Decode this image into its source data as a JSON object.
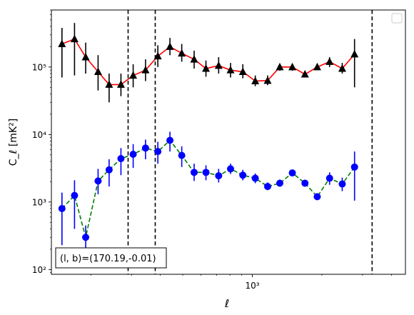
{
  "chart_data": {
    "type": "scatter",
    "title": "",
    "xlabel": "ℓ",
    "ylabel": "C_ℓ [mK²]",
    "xscale": "log",
    "yscale": "log",
    "xlim": [
      135,
      4600
    ],
    "ylim": [
      85,
      700000
    ],
    "xticks": [
      {
        "value": 1000,
        "label": "10³"
      }
    ],
    "yticks": [
      {
        "value": 100,
        "label": "10²"
      },
      {
        "value": 1000,
        "label": "10³"
      },
      {
        "value": 10000,
        "label": "10⁴"
      },
      {
        "value": 100000,
        "label": "10⁵"
      }
    ],
    "vlines": [
      290,
      380,
      3300
    ],
    "vline_style": "dashed",
    "vline_color": "#000000",
    "legend": {
      "placement": "upper right",
      "entries": []
    },
    "annotation": {
      "text": "(l, b)=(170.19,-0.01)",
      "placement": "lower left"
    },
    "series": [
      {
        "marker": "triangle",
        "marker_color": "#000000",
        "line_color": "#ff0000",
        "line_style": "solid",
        "errorbar_color": "#000000",
        "points": [
          {
            "x": 150,
            "y": 220000,
            "lo": 70000,
            "hi": 380000
          },
          {
            "x": 170,
            "y": 260000,
            "lo": 75000,
            "hi": 450000
          },
          {
            "x": 190,
            "y": 140000,
            "lo": 80000,
            "hi": 230000
          },
          {
            "x": 215,
            "y": 85000,
            "lo": 45000,
            "hi": 150000
          },
          {
            "x": 240,
            "y": 55000,
            "lo": 30000,
            "hi": 80000
          },
          {
            "x": 270,
            "y": 55000,
            "lo": 37000,
            "hi": 80000
          },
          {
            "x": 305,
            "y": 75000,
            "lo": 50000,
            "hi": 110000
          },
          {
            "x": 345,
            "y": 90000,
            "lo": 62000,
            "hi": 130000
          },
          {
            "x": 390,
            "y": 145000,
            "lo": 100000,
            "hi": 210000
          },
          {
            "x": 440,
            "y": 200000,
            "lo": 150000,
            "hi": 270000
          },
          {
            "x": 495,
            "y": 160000,
            "lo": 120000,
            "hi": 220000
          },
          {
            "x": 560,
            "y": 130000,
            "lo": 95000,
            "hi": 175000
          },
          {
            "x": 630,
            "y": 95000,
            "lo": 72000,
            "hi": 125000
          },
          {
            "x": 715,
            "y": 105000,
            "lo": 80000,
            "hi": 140000
          },
          {
            "x": 805,
            "y": 90000,
            "lo": 70000,
            "hi": 115000
          },
          {
            "x": 910,
            "y": 85000,
            "lo": 68000,
            "hi": 110000
          },
          {
            "x": 1030,
            "y": 62000,
            "lo": 52000,
            "hi": 75000
          },
          {
            "x": 1165,
            "y": 63000,
            "lo": 54000,
            "hi": 75000
          },
          {
            "x": 1315,
            "y": 100000,
            "lo": 88000,
            "hi": 112000
          },
          {
            "x": 1490,
            "y": 100000,
            "lo": 88000,
            "hi": 112000
          },
          {
            "x": 1690,
            "y": 78000,
            "lo": 70000,
            "hi": 88000
          },
          {
            "x": 1910,
            "y": 100000,
            "lo": 90000,
            "hi": 112000
          },
          {
            "x": 2160,
            "y": 120000,
            "lo": 100000,
            "hi": 140000
          },
          {
            "x": 2450,
            "y": 95000,
            "lo": 80000,
            "hi": 115000
          },
          {
            "x": 2770,
            "y": 155000,
            "lo": 50000,
            "hi": 260000
          }
        ]
      },
      {
        "marker": "circle",
        "marker_color": "#0000ff",
        "line_color": "#008000",
        "line_style": "dashed",
        "errorbar_color": "#0000ff",
        "points": [
          {
            "x": 150,
            "y": 800,
            "lo": 230,
            "hi": 1380
          },
          {
            "x": 170,
            "y": 1250,
            "lo": 400,
            "hi": 2100
          },
          {
            "x": 190,
            "y": 300,
            "lo": 200,
            "hi": 450
          },
          {
            "x": 215,
            "y": 2050,
            "lo": 1300,
            "hi": 3100
          },
          {
            "x": 240,
            "y": 3000,
            "lo": 1700,
            "hi": 4300
          },
          {
            "x": 270,
            "y": 4400,
            "lo": 2500,
            "hi": 6300
          },
          {
            "x": 305,
            "y": 5100,
            "lo": 3200,
            "hi": 7200
          },
          {
            "x": 345,
            "y": 6300,
            "lo": 4300,
            "hi": 8400
          },
          {
            "x": 390,
            "y": 5600,
            "lo": 3700,
            "hi": 7800
          },
          {
            "x": 440,
            "y": 8200,
            "lo": 5600,
            "hi": 11000
          },
          {
            "x": 495,
            "y": 4900,
            "lo": 3300,
            "hi": 6700
          },
          {
            "x": 560,
            "y": 2750,
            "lo": 2050,
            "hi": 3700
          },
          {
            "x": 630,
            "y": 2750,
            "lo": 2100,
            "hi": 3500
          },
          {
            "x": 715,
            "y": 2450,
            "lo": 1950,
            "hi": 3100
          },
          {
            "x": 805,
            "y": 3100,
            "lo": 2600,
            "hi": 3700
          },
          {
            "x": 910,
            "y": 2500,
            "lo": 2100,
            "hi": 3000
          },
          {
            "x": 1030,
            "y": 2250,
            "lo": 1900,
            "hi": 2650
          },
          {
            "x": 1165,
            "y": 1700,
            "lo": 1500,
            "hi": 1950
          },
          {
            "x": 1315,
            "y": 1900,
            "lo": 1700,
            "hi": 2150
          },
          {
            "x": 1490,
            "y": 2700,
            "lo": 2450,
            "hi": 2950
          },
          {
            "x": 1690,
            "y": 1900,
            "lo": 1700,
            "hi": 2100
          },
          {
            "x": 1910,
            "y": 1200,
            "lo": 1080,
            "hi": 1330
          },
          {
            "x": 2160,
            "y": 2250,
            "lo": 1800,
            "hi": 2750
          },
          {
            "x": 2450,
            "y": 1850,
            "lo": 1450,
            "hi": 2300
          },
          {
            "x": 2770,
            "y": 3300,
            "lo": 1050,
            "hi": 5600
          }
        ]
      }
    ]
  }
}
